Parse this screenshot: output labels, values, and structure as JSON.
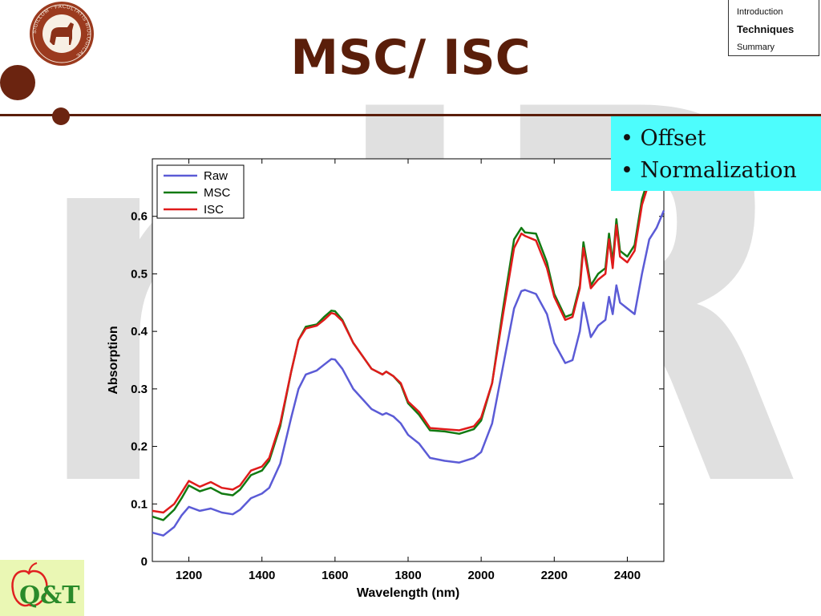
{
  "slide": {
    "title": "MSC/ ISC",
    "watermark": "nIR",
    "colors": {
      "title": "#5a1e0a",
      "accent_line": "#5a1e0a",
      "dot": "#6b2410",
      "watermark": "#e0e0e0",
      "bullet_bg": "#4dfdfd"
    }
  },
  "nav": {
    "items": [
      {
        "label": "Introduction",
        "active": false
      },
      {
        "label": "Techniques",
        "active": true
      },
      {
        "label": "Summary",
        "active": false
      }
    ]
  },
  "bullets": [
    "Offset",
    "Normalization"
  ],
  "logos": {
    "seal_text": "SIGILLUM · FACULTATIS BIOLOGICAE",
    "qt_text": "Q&T"
  },
  "chart_data": {
    "type": "line",
    "xlabel": "Wavelength (nm)",
    "ylabel": "Absorption",
    "xlim": [
      1100,
      2500
    ],
    "ylim": [
      0,
      0.7
    ],
    "xticks": [
      1200,
      1400,
      1600,
      1800,
      2000,
      2200,
      2400
    ],
    "yticks": [
      0,
      0.1,
      0.2,
      0.3,
      0.4,
      0.5,
      0.6
    ],
    "grid": false,
    "legend_position": "top-left",
    "series": [
      {
        "name": "Raw",
        "color": "#5b5bd6",
        "x": [
          1100,
          1130,
          1160,
          1180,
          1200,
          1230,
          1260,
          1290,
          1320,
          1340,
          1370,
          1400,
          1420,
          1450,
          1480,
          1500,
          1520,
          1550,
          1570,
          1590,
          1600,
          1620,
          1650,
          1700,
          1730,
          1740,
          1760,
          1780,
          1800,
          1830,
          1860,
          1900,
          1940,
          1980,
          2000,
          2030,
          2060,
          2090,
          2110,
          2120,
          2150,
          2180,
          2200,
          2230,
          2250,
          2270,
          2280,
          2300,
          2320,
          2340,
          2350,
          2360,
          2370,
          2380,
          2400,
          2420,
          2440,
          2460,
          2480,
          2500
        ],
        "y": [
          0.05,
          0.045,
          0.06,
          0.08,
          0.095,
          0.088,
          0.092,
          0.085,
          0.082,
          0.09,
          0.11,
          0.118,
          0.128,
          0.17,
          0.25,
          0.3,
          0.325,
          0.332,
          0.342,
          0.352,
          0.351,
          0.335,
          0.3,
          0.265,
          0.255,
          0.258,
          0.252,
          0.24,
          0.22,
          0.205,
          0.18,
          0.175,
          0.172,
          0.18,
          0.19,
          0.24,
          0.34,
          0.44,
          0.47,
          0.472,
          0.465,
          0.43,
          0.38,
          0.345,
          0.35,
          0.4,
          0.45,
          0.39,
          0.41,
          0.42,
          0.46,
          0.43,
          0.48,
          0.45,
          0.44,
          0.43,
          0.5,
          0.56,
          0.58,
          0.61
        ]
      },
      {
        "name": "MSC",
        "color": "#127a12",
        "x": [
          1100,
          1130,
          1160,
          1180,
          1200,
          1230,
          1260,
          1290,
          1320,
          1340,
          1370,
          1400,
          1420,
          1450,
          1480,
          1500,
          1520,
          1550,
          1570,
          1590,
          1600,
          1620,
          1650,
          1700,
          1730,
          1740,
          1760,
          1780,
          1800,
          1830,
          1860,
          1900,
          1940,
          1980,
          2000,
          2030,
          2060,
          2090,
          2110,
          2120,
          2150,
          2180,
          2200,
          2230,
          2250,
          2270,
          2280,
          2300,
          2320,
          2340,
          2350,
          2360,
          2370,
          2380,
          2400,
          2420,
          2440,
          2455
        ],
        "y": [
          0.078,
          0.072,
          0.09,
          0.11,
          0.132,
          0.122,
          0.128,
          0.118,
          0.115,
          0.125,
          0.15,
          0.158,
          0.175,
          0.235,
          0.33,
          0.385,
          0.408,
          0.412,
          0.425,
          0.436,
          0.435,
          0.42,
          0.38,
          0.335,
          0.325,
          0.33,
          0.322,
          0.308,
          0.275,
          0.255,
          0.228,
          0.226,
          0.222,
          0.23,
          0.245,
          0.31,
          0.44,
          0.56,
          0.58,
          0.572,
          0.57,
          0.52,
          0.465,
          0.425,
          0.43,
          0.48,
          0.555,
          0.48,
          0.5,
          0.51,
          0.57,
          0.52,
          0.595,
          0.54,
          0.53,
          0.55,
          0.63,
          0.66
        ]
      },
      {
        "name": "ISC",
        "color": "#e01b1b",
        "x": [
          1100,
          1130,
          1160,
          1180,
          1200,
          1230,
          1260,
          1290,
          1320,
          1340,
          1370,
          1400,
          1420,
          1450,
          1480,
          1500,
          1520,
          1550,
          1570,
          1590,
          1600,
          1620,
          1650,
          1700,
          1730,
          1740,
          1760,
          1780,
          1800,
          1830,
          1860,
          1900,
          1940,
          1980,
          2000,
          2030,
          2060,
          2090,
          2110,
          2120,
          2150,
          2180,
          2200,
          2230,
          2250,
          2270,
          2280,
          2300,
          2320,
          2340,
          2350,
          2360,
          2370,
          2380,
          2400,
          2420,
          2440,
          2455
        ],
        "y": [
          0.088,
          0.085,
          0.1,
          0.12,
          0.14,
          0.13,
          0.138,
          0.128,
          0.125,
          0.132,
          0.158,
          0.165,
          0.18,
          0.24,
          0.33,
          0.385,
          0.405,
          0.41,
          0.42,
          0.432,
          0.43,
          0.418,
          0.38,
          0.335,
          0.325,
          0.33,
          0.322,
          0.31,
          0.278,
          0.26,
          0.232,
          0.23,
          0.228,
          0.235,
          0.25,
          0.31,
          0.43,
          0.545,
          0.57,
          0.566,
          0.558,
          0.51,
          0.46,
          0.42,
          0.425,
          0.475,
          0.545,
          0.475,
          0.49,
          0.5,
          0.56,
          0.51,
          0.585,
          0.53,
          0.52,
          0.54,
          0.62,
          0.65
        ]
      }
    ]
  }
}
